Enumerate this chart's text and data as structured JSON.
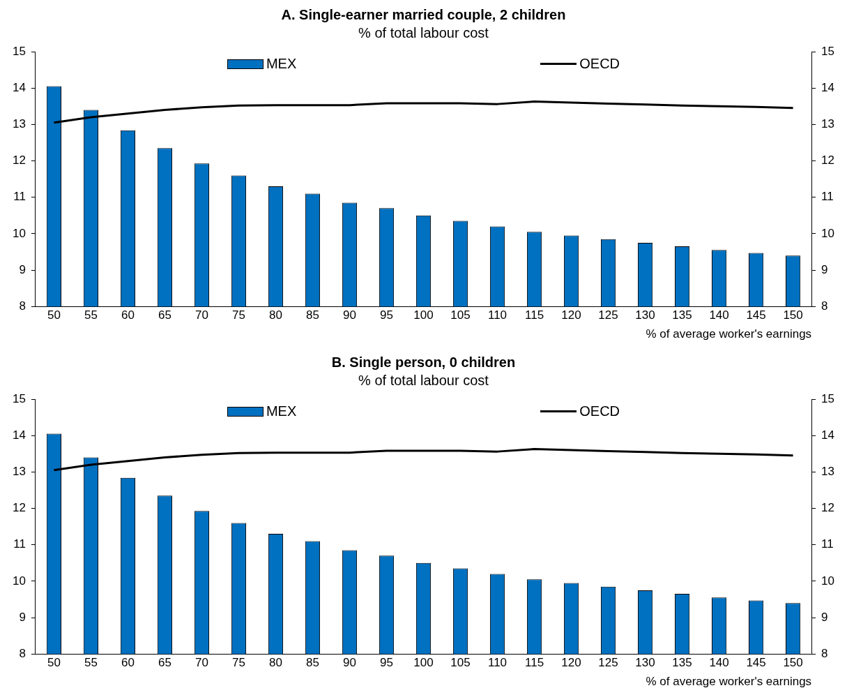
{
  "chart_data": [
    {
      "type": "bar",
      "title": "A. Single-earner married couple, 2 children",
      "subtitle": "% of total labour cost",
      "xlabel": "% of average worker's earnings",
      "categories": [
        "50",
        "55",
        "60",
        "65",
        "70",
        "75",
        "80",
        "85",
        "90",
        "95",
        "100",
        "105",
        "110",
        "115",
        "120",
        "125",
        "130",
        "135",
        "140",
        "145",
        "150"
      ],
      "series": [
        {
          "name": "MEX",
          "color": "#0070c0",
          "values": [
            14.05,
            13.4,
            12.84,
            12.35,
            11.93,
            11.6,
            11.3,
            11.1,
            10.85,
            10.7,
            10.5,
            10.35,
            10.2,
            10.05,
            9.95,
            9.85,
            9.75,
            9.65,
            9.55,
            9.47,
            9.4
          ]
        },
        {
          "name": "OECD",
          "type": "line",
          "color": "#000000",
          "values": [
            13.05,
            13.2,
            13.3,
            13.4,
            13.47,
            13.52,
            13.53,
            13.53,
            13.53,
            13.58,
            13.58,
            13.58,
            13.56,
            13.63,
            13.6,
            13.57,
            13.55,
            13.52,
            13.5,
            13.48,
            13.45
          ]
        }
      ],
      "ylim": [
        8,
        15
      ],
      "yticks": [
        8,
        9,
        10,
        11,
        12,
        13,
        14,
        15
      ],
      "y2lim": [
        8,
        15
      ],
      "y2ticks": [
        8,
        9,
        10,
        11,
        12,
        13,
        14,
        15
      ],
      "grid": false,
      "legend": "top",
      "marker": "none"
    },
    {
      "type": "bar",
      "title": "B. Single person, 0 children",
      "subtitle": "% of total labour cost",
      "xlabel": "% of average worker's earnings",
      "categories": [
        "50",
        "55",
        "60",
        "65",
        "70",
        "75",
        "80",
        "85",
        "90",
        "95",
        "100",
        "105",
        "110",
        "115",
        "120",
        "125",
        "130",
        "135",
        "140",
        "145",
        "150"
      ],
      "series": [
        {
          "name": "MEX",
          "color": "#0070c0",
          "values": [
            14.05,
            13.4,
            12.84,
            12.35,
            11.93,
            11.6,
            11.3,
            11.1,
            10.85,
            10.7,
            10.5,
            10.35,
            10.2,
            10.05,
            9.95,
            9.85,
            9.75,
            9.65,
            9.55,
            9.47,
            9.4
          ]
        },
        {
          "name": "OECD",
          "type": "line",
          "color": "#000000",
          "values": [
            13.05,
            13.2,
            13.3,
            13.4,
            13.47,
            13.52,
            13.53,
            13.53,
            13.53,
            13.58,
            13.58,
            13.58,
            13.56,
            13.63,
            13.6,
            13.57,
            13.55,
            13.52,
            13.5,
            13.48,
            13.45
          ]
        }
      ],
      "ylim": [
        8,
        15
      ],
      "yticks": [
        8,
        9,
        10,
        11,
        12,
        13,
        14,
        15
      ],
      "y2lim": [
        8,
        15
      ],
      "y2ticks": [
        8,
        9,
        10,
        11,
        12,
        13,
        14,
        15
      ],
      "grid": false,
      "legend": "top",
      "marker": "none"
    }
  ]
}
